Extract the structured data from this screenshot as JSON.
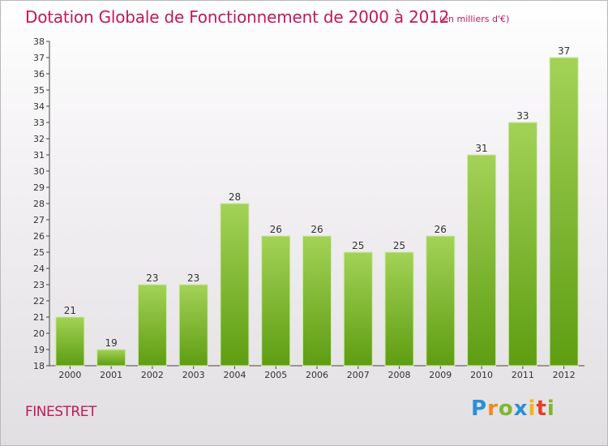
{
  "title": "Dotation Globale de Fonctionnement de 2000 à 2012",
  "subtitle": "(en milliers d'€)",
  "commune": "FINESTRET",
  "logo": "Proxiti",
  "colors": {
    "title": "#c2185b",
    "bar_top": "#a3d257",
    "bar_bottom": "#5e9d12"
  },
  "chart_data": {
    "type": "bar",
    "categories": [
      "2000",
      "2001",
      "2002",
      "2003",
      "2004",
      "2005",
      "2006",
      "2007",
      "2008",
      "2009",
      "2010",
      "2011",
      "2012"
    ],
    "values": [
      21,
      19,
      23,
      23,
      28,
      26,
      26,
      25,
      25,
      26,
      31,
      33,
      37
    ],
    "ylim": [
      18,
      38
    ],
    "yticks": [
      18,
      19,
      20,
      21,
      22,
      23,
      24,
      25,
      26,
      27,
      28,
      29,
      30,
      31,
      32,
      33,
      34,
      35,
      36,
      37,
      38
    ],
    "grid": false,
    "title": "Dotation Globale de Fonctionnement de 2000 à 2012",
    "xlabel": "",
    "ylabel": ""
  }
}
